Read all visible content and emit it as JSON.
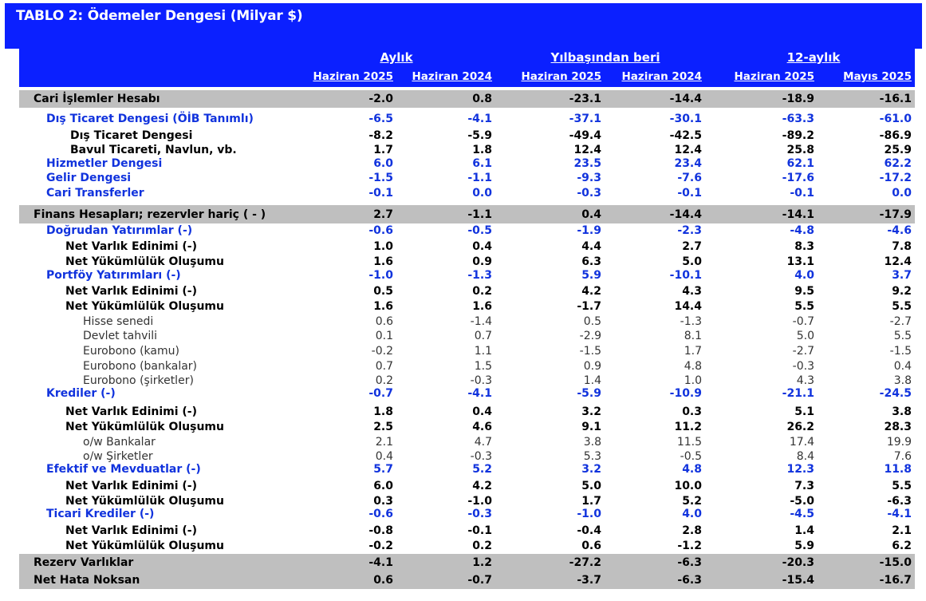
{
  "title": "TABLO 2: Ödemeler Dengesi (Milyar $)",
  "header": {
    "groups": [
      "Aylık",
      "Yılbaşından beri",
      "12-aylık"
    ],
    "columns": [
      "Haziran 2025",
      "Haziran 2024",
      "Haziran 2025",
      "Haziran 2024",
      "Haziran 2025",
      "Mayıs 2025"
    ]
  },
  "rows": [
    {
      "label": "Cari İşlemler Hesabı",
      "values": [
        "-2.0",
        "0.8",
        "-23.1",
        "-14.4",
        "-18.9",
        "-16.1"
      ]
    },
    {
      "label": "Dış Ticaret Dengesi (ÖİB Tanımlı)",
      "values": [
        "-6.5",
        "-4.1",
        "-37.1",
        "-30.1",
        "-63.3",
        "-61.0"
      ]
    },
    {
      "label": "Dış Ticaret Dengesi",
      "values": [
        "-8.2",
        "-5.9",
        "-49.4",
        "-42.5",
        "-89.2",
        "-86.9"
      ]
    },
    {
      "label": "Bavul Ticareti, Navlun, vb.",
      "values": [
        "1.7",
        "1.8",
        "12.4",
        "12.4",
        "25.8",
        "25.9"
      ]
    },
    {
      "label": "Hizmetler Dengesi",
      "values": [
        "6.0",
        "6.1",
        "23.5",
        "23.4",
        "62.1",
        "62.2"
      ]
    },
    {
      "label": "Gelir Dengesi",
      "values": [
        "-1.5",
        "-1.1",
        "-9.3",
        "-7.6",
        "-17.6",
        "-17.2"
      ]
    },
    {
      "label": "Cari Transferler",
      "values": [
        "-0.1",
        "0.0",
        "-0.3",
        "-0.1",
        "-0.1",
        "0.0"
      ]
    },
    {
      "label": "Finans Hesapları; rezervler hariç ( - )",
      "values": [
        "2.7",
        "-1.1",
        "0.4",
        "-14.4",
        "-14.1",
        "-17.9"
      ]
    },
    {
      "label": "Doğrudan Yatırımlar (-)",
      "values": [
        "-0.6",
        "-0.5",
        "-1.9",
        "-2.3",
        "-4.8",
        "-4.6"
      ]
    },
    {
      "label": "Net Varlık Edinimi (-)",
      "values": [
        "1.0",
        "0.4",
        "4.4",
        "2.7",
        "8.3",
        "7.8"
      ]
    },
    {
      "label": "Net Yükümlülük Oluşumu",
      "values": [
        "1.6",
        "0.9",
        "6.3",
        "5.0",
        "13.1",
        "12.4"
      ]
    },
    {
      "label": "Portföy Yatırımları (-)",
      "values": [
        "-1.0",
        "-1.3",
        "5.9",
        "-10.1",
        "4.0",
        "3.7"
      ]
    },
    {
      "label": "Net Varlık Edinimi (-)",
      "values": [
        "0.5",
        "0.2",
        "4.2",
        "4.3",
        "9.5",
        "9.2"
      ]
    },
    {
      "label": "Net Yükümlülük Oluşumu",
      "values": [
        "1.6",
        "1.6",
        "-1.7",
        "14.4",
        "5.5",
        "5.5"
      ]
    },
    {
      "label": "Hisse senedi",
      "values": [
        "0.6",
        "-1.4",
        "0.5",
        "-1.3",
        "-0.7",
        "-2.7"
      ]
    },
    {
      "label": "Devlet tahvili",
      "values": [
        "0.1",
        "0.7",
        "-2.9",
        "8.1",
        "5.0",
        "5.5"
      ]
    },
    {
      "label": "Eurobono (kamu)",
      "values": [
        "-0.2",
        "1.1",
        "-1.5",
        "1.7",
        "-2.7",
        "-1.5"
      ]
    },
    {
      "label": "Eurobono (bankalar)",
      "values": [
        "0.7",
        "1.5",
        "0.9",
        "4.8",
        "-0.3",
        "0.4"
      ]
    },
    {
      "label": "Eurobono (şirketler)",
      "values": [
        "0.2",
        "-0.3",
        "1.4",
        "1.0",
        "4.3",
        "3.8"
      ]
    },
    {
      "label": "Krediler (-)",
      "values": [
        "-0.7",
        "-4.1",
        "-5.9",
        "-10.9",
        "-21.1",
        "-24.5"
      ]
    },
    {
      "label": "Net Varlık Edinimi (-)",
      "values": [
        "1.8",
        "0.4",
        "3.2",
        "0.3",
        "5.1",
        "3.8"
      ]
    },
    {
      "label": "Net Yükümlülük Oluşumu",
      "values": [
        "2.5",
        "4.6",
        "9.1",
        "11.2",
        "26.2",
        "28.3"
      ]
    },
    {
      "label": "o/w Bankalar",
      "values": [
        "2.1",
        "4.7",
        "3.8",
        "11.5",
        "17.4",
        "19.9"
      ]
    },
    {
      "label": "o/w Şirketler",
      "values": [
        "0.4",
        "-0.3",
        "5.3",
        "-0.5",
        "8.4",
        "7.6"
      ]
    },
    {
      "label": "Efektif ve Mevduatlar (-)",
      "values": [
        "5.7",
        "5.2",
        "3.2",
        "4.8",
        "12.3",
        "11.8"
      ]
    },
    {
      "label": "Net Varlık Edinimi (-)",
      "values": [
        "6.0",
        "4.2",
        "5.0",
        "10.0",
        "7.3",
        "5.5"
      ]
    },
    {
      "label": "Net Yükümlülük Oluşumu",
      "values": [
        "0.3",
        "-1.0",
        "1.7",
        "5.2",
        "-5.0",
        "-6.3"
      ]
    },
    {
      "label": "Ticari Krediler (-)",
      "values": [
        "-0.6",
        "-0.3",
        "-1.0",
        "4.0",
        "-4.5",
        "-4.1"
      ]
    },
    {
      "label": "Net Varlık Edinimi (-)",
      "values": [
        "-0.8",
        "-0.1",
        "-0.4",
        "2.8",
        "1.4",
        "2.1"
      ]
    },
    {
      "label": "Net Yükümlülük Oluşumu",
      "values": [
        "-0.2",
        "0.2",
        "0.6",
        "-1.2",
        "5.9",
        "6.2"
      ]
    },
    {
      "label": "Rezerv Varlıklar",
      "values": [
        "-4.1",
        "1.2",
        "-27.2",
        "-6.3",
        "-20.3",
        "-15.0"
      ]
    },
    {
      "label": "Net Hata Noksan",
      "values": [
        "0.6",
        "-0.7",
        "-3.7",
        "-6.3",
        "-15.4",
        "-16.7"
      ]
    }
  ]
}
